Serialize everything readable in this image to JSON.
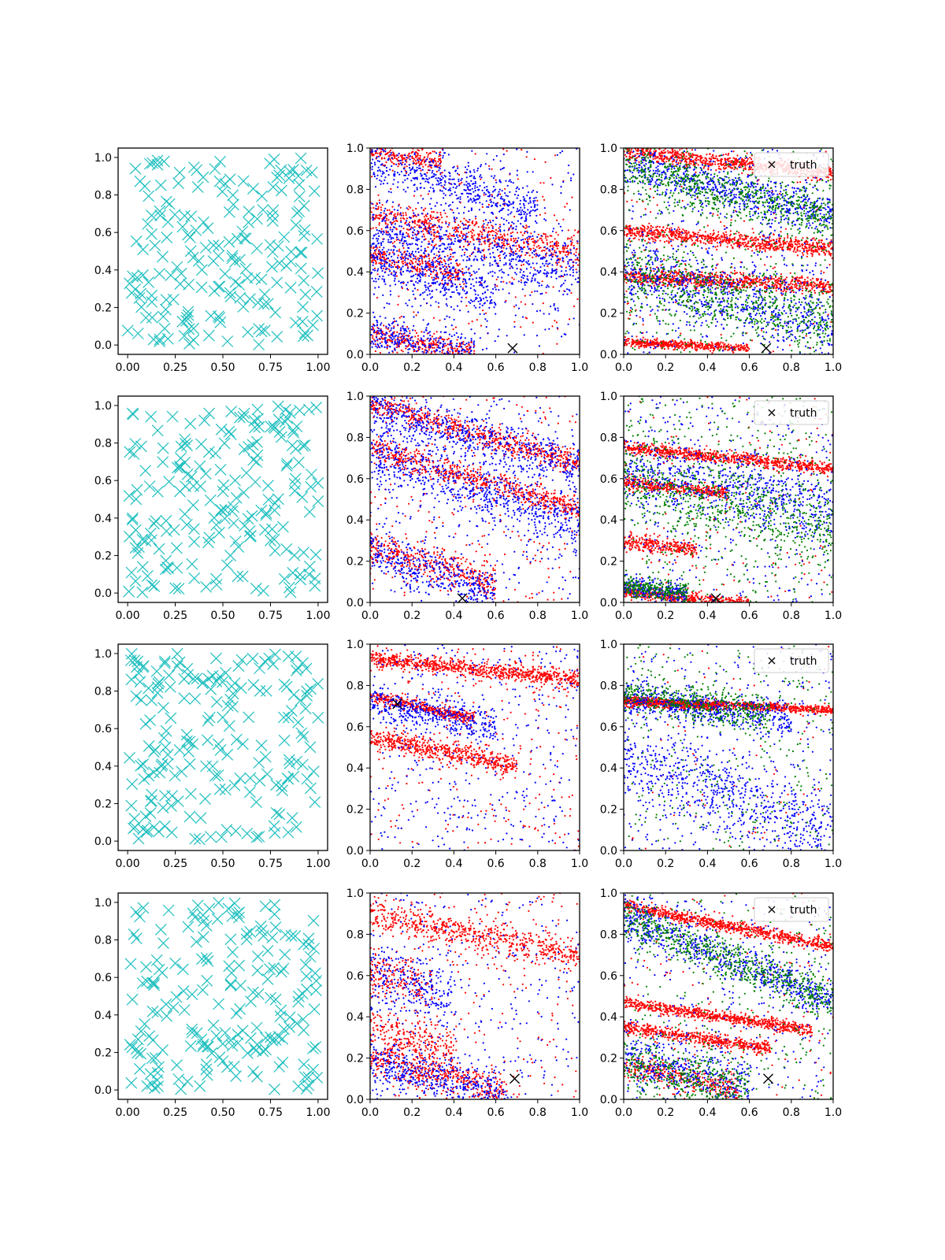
{
  "colors": {
    "cross_marker": "#1fbfbf",
    "red_points": "#ff0000",
    "blue_points": "#0000ff",
    "green_points": "#008000",
    "truth_marker": "#000000"
  },
  "legend": {
    "truth_label": "truth",
    "placement": "top-right",
    "panels": "third column"
  },
  "chart_data": [
    {
      "row": 1,
      "panels": [
        {
          "column": 1,
          "type": "scatter",
          "marker": "x",
          "series": [
            {
              "color": "cyan",
              "count": 200
            }
          ],
          "xlim": [
            -0.05,
            1.05
          ],
          "ylim": [
            -0.05,
            1.05
          ],
          "xticks": [
            "0.00",
            "0.25",
            "0.50",
            "0.75",
            "1.00"
          ],
          "yticks": [
            "0.0",
            "0.2",
            "0.4",
            "0.6",
            "0.8",
            "1.0"
          ]
        },
        {
          "column": 2,
          "type": "scatter",
          "marker": ".",
          "xlim": [
            0,
            1
          ],
          "ylim": [
            0,
            1
          ],
          "xticks": [
            "0.0",
            "0.2",
            "0.4",
            "0.6",
            "0.8",
            "1.0"
          ],
          "yticks": [
            "0.0",
            "0.2",
            "0.4",
            "0.6",
            "0.8",
            "1.0"
          ],
          "truth": {
            "x": 0.68,
            "y": 0.03
          },
          "series": [
            {
              "color": "red",
              "bands": [
                [
                  0.98,
                  0.12,
                  0.03,
                  0.35
                ],
                [
                  0.48,
                  0.2,
                  0.03,
                  0.45
                ],
                [
                  0.1,
                  0.2,
                  0.03,
                  0.5
                ],
                [
                  0.67,
                  0.17,
                  0.04,
                  1.0
                ]
              ],
              "noise": 200
            },
            {
              "color": "blue",
              "bands": [
                [
                  0.96,
                  0.35,
                  0.06,
                  0.8
                ],
                [
                  0.45,
                  0.3,
                  0.06,
                  0.6
                ],
                [
                  0.1,
                  0.2,
                  0.05,
                  0.5
                ],
                [
                  0.6,
                  0.2,
                  0.07,
                  1.0
                ]
              ],
              "noise": 300
            }
          ]
        },
        {
          "column": 3,
          "type": "scatter",
          "marker": ".",
          "xlim": [
            0,
            1
          ],
          "ylim": [
            0,
            1
          ],
          "xticks": [
            "0.0",
            "0.2",
            "0.4",
            "0.6",
            "0.8",
            "1.0"
          ],
          "yticks": [
            "0.0",
            "0.2",
            "0.4",
            "0.6",
            "0.8",
            "1.0"
          ],
          "truth": {
            "x": 0.68,
            "y": 0.03
          },
          "legend": true,
          "series": [
            {
              "color": "red",
              "bands": [
                [
                  0.98,
                  0.1,
                  0.02,
                  1.0
                ],
                [
                  0.38,
                  0.05,
                  0.02,
                  1.0
                ],
                [
                  0.06,
                  0.05,
                  0.01,
                  0.6
                ],
                [
                  0.6,
                  0.09,
                  0.02,
                  1.0
                ]
              ],
              "noise": 150
            },
            {
              "color": "blue",
              "bands": [
                [
                  0.92,
                  0.25,
                  0.05,
                  1.0
                ],
                [
                  0.4,
                  0.25,
                  0.08,
                  1.0
                ]
              ],
              "noise": 400
            },
            {
              "color": "green",
              "bands": [
                [
                  0.9,
                  0.25,
                  0.06,
                  1.0
                ],
                [
                  0.4,
                  0.25,
                  0.08,
                  1.0
                ]
              ],
              "noise": 400
            }
          ]
        }
      ]
    },
    {
      "row": 2,
      "panels": [
        {
          "column": 1,
          "type": "scatter",
          "marker": "x",
          "series": [
            {
              "color": "cyan",
              "count": 200
            }
          ],
          "xlim": [
            -0.05,
            1.05
          ],
          "ylim": [
            -0.05,
            1.05
          ],
          "xticks": [
            "0.00",
            "0.25",
            "0.50",
            "0.75",
            "1.00"
          ],
          "yticks": [
            "0.0",
            "0.2",
            "0.4",
            "0.6",
            "0.8",
            "1.0"
          ]
        },
        {
          "column": 2,
          "type": "scatter",
          "marker": ".",
          "xlim": [
            0,
            1
          ],
          "ylim": [
            0,
            1
          ],
          "xticks": [
            "0.0",
            "0.2",
            "0.4",
            "0.6",
            "0.8",
            "1.0"
          ],
          "yticks": [
            "0.0",
            "0.2",
            "0.4",
            "0.6",
            "0.8",
            "1.0"
          ],
          "truth": {
            "x": 0.44,
            "y": 0.02
          },
          "series": [
            {
              "color": "red",
              "bands": [
                [
                  0.75,
                  0.3,
                  0.03,
                  1.0
                ],
                [
                  0.27,
                  0.3,
                  0.04,
                  0.6
                ],
                [
                  0.97,
                  0.3,
                  0.03,
                  1.0
                ]
              ],
              "noise": 250
            },
            {
              "color": "blue",
              "bands": [
                [
                  0.72,
                  0.35,
                  0.07,
                  1.0
                ],
                [
                  0.25,
                  0.35,
                  0.06,
                  0.6
                ],
                [
                  0.95,
                  0.3,
                  0.06,
                  1.0
                ]
              ],
              "noise": 300
            }
          ]
        },
        {
          "column": 3,
          "type": "scatter",
          "marker": ".",
          "xlim": [
            0,
            1
          ],
          "ylim": [
            0,
            1
          ],
          "xticks": [
            "0.0",
            "0.2",
            "0.4",
            "0.6",
            "0.8",
            "1.0"
          ],
          "yticks": [
            "0.0",
            "0.2",
            "0.4",
            "0.6",
            "0.8",
            "1.0"
          ],
          "truth": {
            "x": 0.44,
            "y": 0.02
          },
          "legend": true,
          "series": [
            {
              "color": "red",
              "bands": [
                [
                  0.05,
                  0.1,
                  0.015,
                  0.6
                ],
                [
                  0.75,
                  0.1,
                  0.015,
                  1.0
                ],
                [
                  0.58,
                  0.1,
                  0.015,
                  0.5
                ],
                [
                  0.29,
                  0.1,
                  0.02,
                  0.35
                ]
              ],
              "noise": 150
            },
            {
              "color": "blue",
              "bands": [
                [
                  0.08,
                  0.12,
                  0.025,
                  0.3
                ],
                [
                  0.65,
                  0.2,
                  0.08,
                  1.0
                ]
              ],
              "noise": 350
            },
            {
              "color": "green",
              "bands": [
                [
                  0.08,
                  0.12,
                  0.025,
                  0.3
                ],
                [
                  0.6,
                  0.25,
                  0.1,
                  1.0
                ]
              ],
              "noise": 400
            }
          ]
        }
      ]
    },
    {
      "row": 3,
      "panels": [
        {
          "column": 1,
          "type": "scatter",
          "marker": "x",
          "series": [
            {
              "color": "cyan",
              "count": 200
            }
          ],
          "xlim": [
            -0.05,
            1.05
          ],
          "ylim": [
            -0.05,
            1.05
          ],
          "xticks": [
            "0.00",
            "0.25",
            "0.50",
            "0.75",
            "1.00"
          ],
          "yticks": [
            "0.0",
            "0.2",
            "0.4",
            "0.6",
            "0.8",
            "1.0"
          ]
        },
        {
          "column": 2,
          "type": "scatter",
          "marker": ".",
          "xlim": [
            0,
            1
          ],
          "ylim": [
            0,
            1
          ],
          "xticks": [
            "0.0",
            "0.2",
            "0.4",
            "0.6",
            "0.8",
            "1.0"
          ],
          "yticks": [
            "0.0",
            "0.2",
            "0.4",
            "0.6",
            "0.8",
            "1.0"
          ],
          "truth": {
            "x": 0.13,
            "y": 0.71
          },
          "series": [
            {
              "color": "red",
              "bands": [
                [
                  0.75,
                  0.22,
                  0.015,
                  0.5
                ],
                [
                  0.55,
                  0.2,
                  0.025,
                  0.7
                ],
                [
                  0.93,
                  0.1,
                  0.02,
                  1.0
                ]
              ],
              "noise": 250
            },
            {
              "color": "blue",
              "bands": [
                [
                  0.72,
                  0.2,
                  0.04,
                  0.6
                ]
              ],
              "noise": 400
            }
          ]
        },
        {
          "column": 3,
          "type": "scatter",
          "marker": ".",
          "xlim": [
            0,
            1
          ],
          "ylim": [
            0,
            1
          ],
          "xticks": [
            "0.0",
            "0.2",
            "0.4",
            "0.6",
            "0.8",
            "1.0"
          ],
          "yticks": [
            "0.0",
            "0.2",
            "0.4",
            "0.6",
            "0.8",
            "1.0"
          ],
          "legend": true,
          "series": [
            {
              "color": "red",
              "bands": [
                [
                  0.72,
                  0.05,
                  0.01,
                  0.45
                ],
                [
                  0.73,
                  0.05,
                  0.01,
                  1.0
                ]
              ],
              "noise": 80
            },
            {
              "color": "blue",
              "bands": [
                [
                  0.75,
                  0.15,
                  0.04,
                  0.8
                ],
                [
                  0.45,
                  0.35,
                  0.1,
                  1.0
                ]
              ],
              "noise": 350
            },
            {
              "color": "green",
              "bands": [
                [
                  0.76,
                  0.15,
                  0.04,
                  0.7
                ]
              ],
              "noise": 300
            }
          ]
        }
      ]
    },
    {
      "row": 4,
      "panels": [
        {
          "column": 1,
          "type": "scatter",
          "marker": "x",
          "series": [
            {
              "color": "cyan",
              "count": 200
            }
          ],
          "xlim": [
            -0.05,
            1.05
          ],
          "ylim": [
            -0.05,
            1.05
          ],
          "xticks": [
            "0.00",
            "0.25",
            "0.50",
            "0.75",
            "1.00"
          ],
          "yticks": [
            "0.0",
            "0.2",
            "0.4",
            "0.6",
            "0.8",
            "1.0"
          ]
        },
        {
          "column": 2,
          "type": "scatter",
          "marker": ".",
          "xlim": [
            0,
            1
          ],
          "ylim": [
            0,
            1
          ],
          "xticks": [
            "0.0",
            "0.2",
            "0.4",
            "0.6",
            "0.8",
            "1.0"
          ],
          "yticks": [
            "0.0",
            "0.2",
            "0.4",
            "0.6",
            "0.8",
            "1.0"
          ],
          "truth": {
            "x": 0.69,
            "y": 0.1
          },
          "series": [
            {
              "color": "red",
              "bands": [
                [
                  0.2,
                  0.25,
                  0.04,
                  0.65
                ],
                [
                  0.33,
                  0.25,
                  0.05,
                  0.4
                ],
                [
                  0.9,
                  0.2,
                  0.04,
                  1.0
                ],
                [
                  0.62,
                  0.25,
                  0.06,
                  0.3
                ]
              ],
              "noise": 250
            },
            {
              "color": "blue",
              "bands": [
                [
                  0.18,
                  0.25,
                  0.05,
                  0.65
                ],
                [
                  0.6,
                  0.25,
                  0.08,
                  0.4
                ]
              ],
              "noise": 300
            }
          ]
        },
        {
          "column": 3,
          "type": "scatter",
          "marker": ".",
          "xlim": [
            0,
            1
          ],
          "ylim": [
            0,
            1
          ],
          "xticks": [
            "0.0",
            "0.2",
            "0.4",
            "0.6",
            "0.8",
            "1.0"
          ],
          "yticks": [
            "0.0",
            "0.2",
            "0.4",
            "0.6",
            "0.8",
            "1.0"
          ],
          "truth": {
            "x": 0.69,
            "y": 0.1
          },
          "legend": true,
          "series": [
            {
              "color": "red",
              "bands": [
                [
                  0.94,
                  0.2,
                  0.015,
                  1.0
                ],
                [
                  0.47,
                  0.15,
                  0.015,
                  0.9
                ],
                [
                  0.35,
                  0.15,
                  0.015,
                  0.7
                ],
                [
                  0.16,
                  0.2,
                  0.03,
                  0.55
                ]
              ],
              "noise": 150
            },
            {
              "color": "blue",
              "bands": [
                [
                  0.88,
                  0.4,
                  0.05,
                  1.0
                ],
                [
                  0.2,
                  0.25,
                  0.07,
                  0.6
                ]
              ],
              "noise": 300
            },
            {
              "color": "green",
              "bands": [
                [
                  0.88,
                  0.4,
                  0.05,
                  1.0
                ],
                [
                  0.18,
                  0.25,
                  0.07,
                  0.6
                ]
              ],
              "noise": 300
            }
          ]
        }
      ]
    }
  ]
}
